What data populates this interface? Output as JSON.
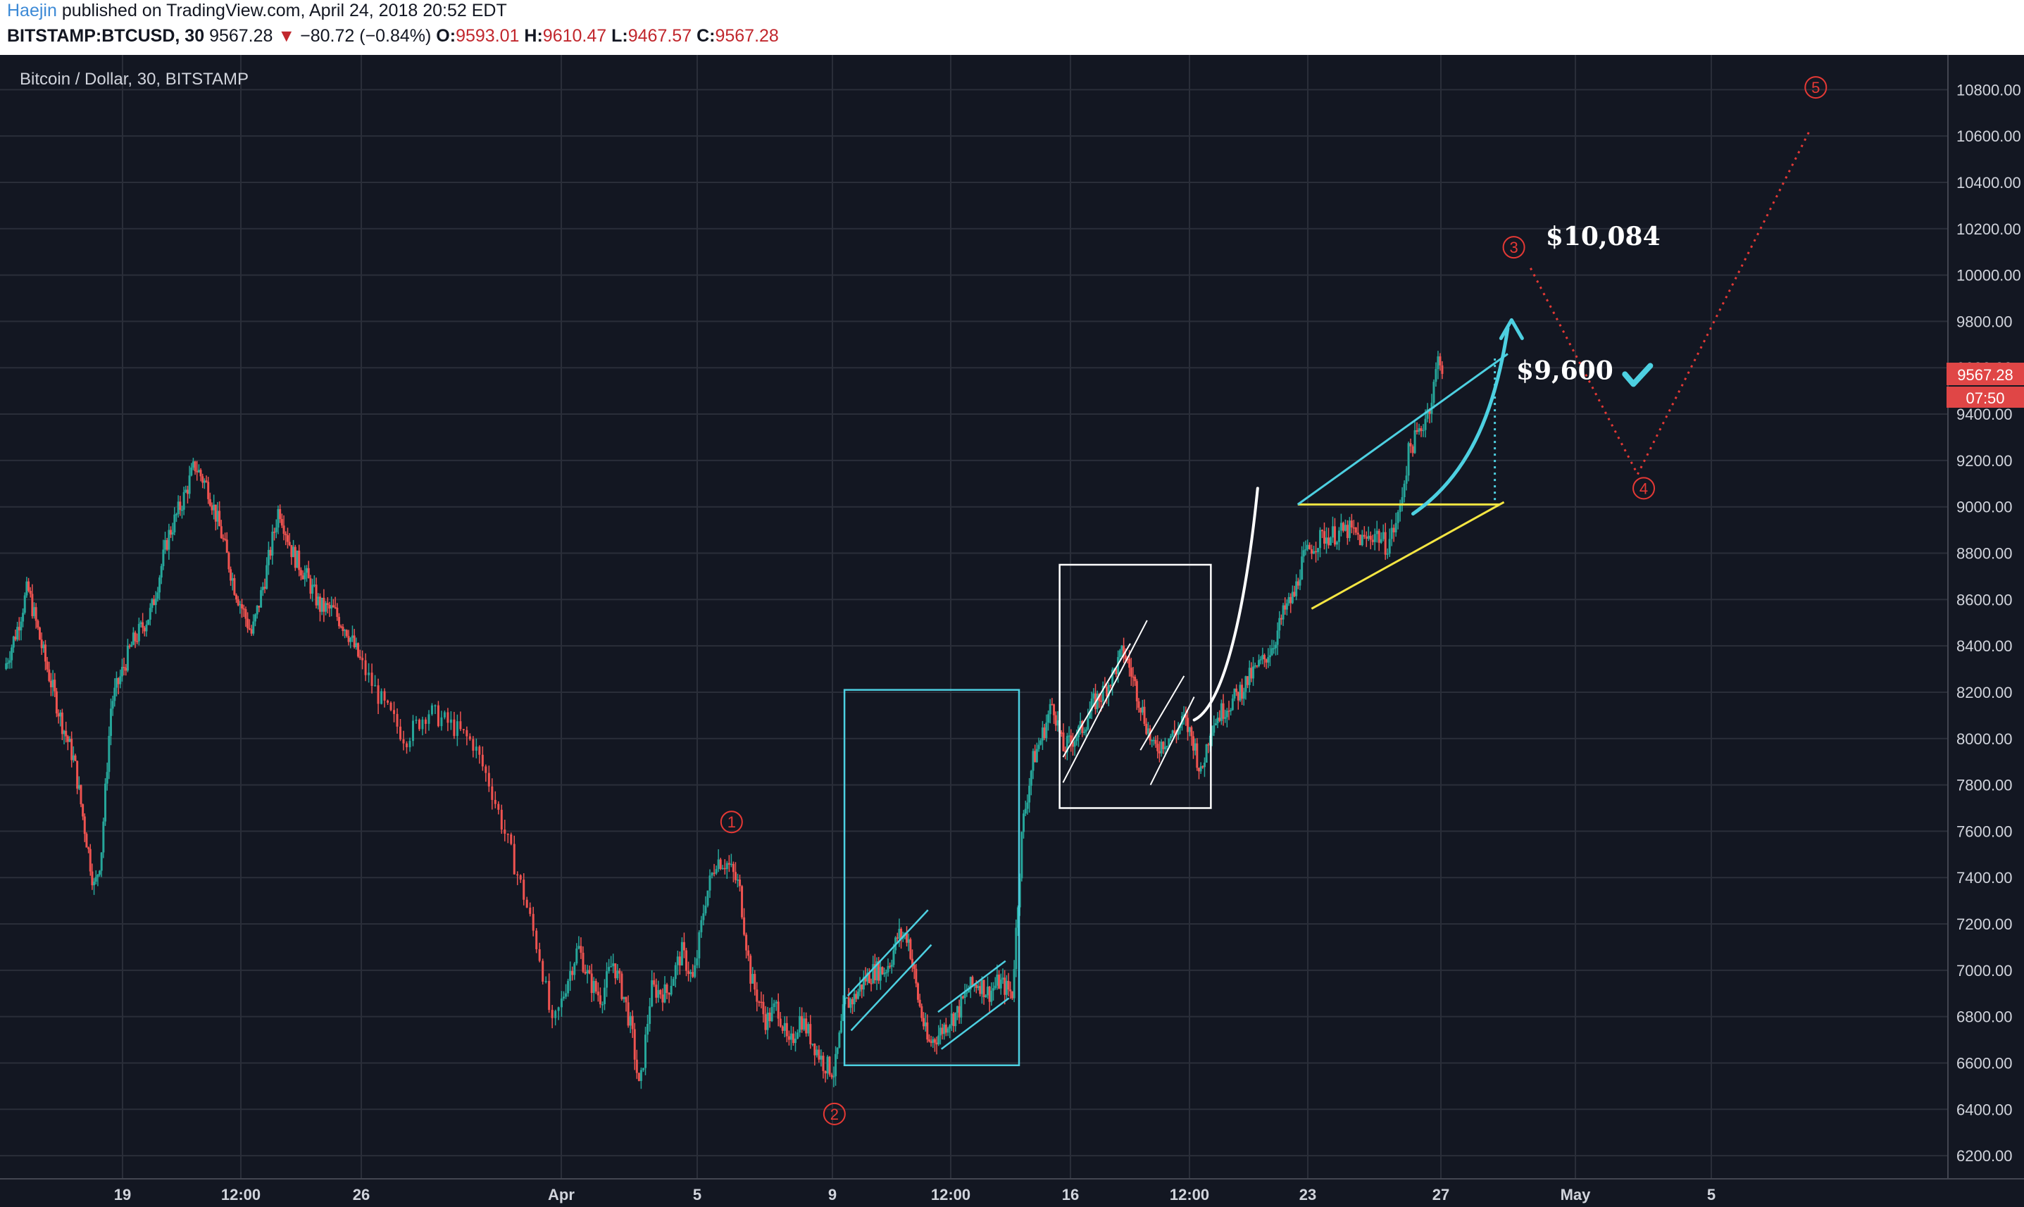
{
  "header": {
    "author": "Haejin",
    "published_text": "published on TradingView.com, April 24, 2018 20:52 EDT",
    "symbol": "BITSTAMP:BTCUSD, 30",
    "last": "9567.28",
    "change": "▼",
    "change_value": "−80.72 (−0.84%)",
    "o_label": "O:",
    "o_value": "9593.01",
    "h_label": "H:",
    "h_value": "9610.47",
    "l_label": "L:",
    "l_value": "9467.57",
    "c_label": "C:",
    "c_value": "9567.28"
  },
  "colors": {
    "background": "#131722",
    "grid": "#2a2e39",
    "up": "#26a69a",
    "down": "#ef5350",
    "cyan": "#4dd0e1",
    "yellow": "#f5e642",
    "wave": "#e53935",
    "price_tag": "#e04646"
  },
  "chart_data": {
    "type": "candlestick",
    "title": "Bitcoin / Dollar, 30, BITSTAMP",
    "x_ticks": [
      "19",
      "12:00",
      "26",
      "Apr",
      "5",
      "9",
      "12:00",
      "16",
      "12:00",
      "23",
      "27",
      "May",
      "5"
    ],
    "ylim": [
      6100,
      10950
    ],
    "y_ticks": [
      6200,
      6400,
      6600,
      6800,
      7000,
      7200,
      7400,
      7600,
      7800,
      8000,
      8200,
      8400,
      8600,
      8800,
      9000,
      9200,
      9400,
      9600,
      9800,
      10000,
      10200,
      10400,
      10600,
      10800
    ],
    "y_tick_labels": [
      "6200.00",
      "6400.00",
      "6600.00",
      "6800.00",
      "7000.00",
      "7200.00",
      "7400.00",
      "7600.00",
      "7800.00",
      "8000.00",
      "8200.00",
      "8400.00",
      "8600.00",
      "8800.00",
      "9000.00",
      "9200.00",
      "9400.00",
      "9600.00",
      "9800.00",
      "10000.00",
      "10200.00",
      "10400.00",
      "10600.00",
      "10800.00"
    ],
    "price_path": [
      [
        0,
        8300
      ],
      [
        0.2,
        8480
      ],
      [
        0.35,
        8650
      ],
      [
        0.6,
        8350
      ],
      [
        0.85,
        8080
      ],
      [
        1.05,
        7900
      ],
      [
        1.2,
        7620
      ],
      [
        1.35,
        7350
      ],
      [
        1.45,
        7500
      ],
      [
        1.6,
        8150
      ],
      [
        1.9,
        8400
      ],
      [
        2.2,
        8550
      ],
      [
        2.45,
        8870
      ],
      [
        2.7,
        9050
      ],
      [
        2.85,
        9180
      ],
      [
        3.05,
        9080
      ],
      [
        3.25,
        8880
      ],
      [
        3.45,
        8650
      ],
      [
        3.7,
        8450
      ],
      [
        3.9,
        8700
      ],
      [
        4.1,
        9000
      ],
      [
        4.3,
        8800
      ],
      [
        4.5,
        8700
      ],
      [
        4.7,
        8570
      ],
      [
        4.9,
        8550
      ],
      [
        5.1,
        8470
      ],
      [
        5.3,
        8330
      ],
      [
        5.5,
        8150
      ],
      [
        5.7,
        8000
      ],
      [
        5.9,
        8120
      ],
      [
        6.1,
        8060
      ],
      [
        6.3,
        7980
      ],
      [
        6.45,
        7800
      ],
      [
        6.6,
        7560
      ],
      [
        6.75,
        7320
      ],
      [
        6.9,
        7040
      ],
      [
        7.0,
        6750
      ],
      [
        7.15,
        6950
      ],
      [
        7.3,
        7100
      ],
      [
        7.45,
        6950
      ],
      [
        7.6,
        6880
      ],
      [
        7.75,
        7040
      ],
      [
        7.9,
        6880
      ],
      [
        8.0,
        6730
      ],
      [
        8.1,
        6470
      ],
      [
        8.25,
        6920
      ],
      [
        8.45,
        6900
      ],
      [
        8.65,
        7080
      ],
      [
        8.8,
        6950
      ],
      [
        8.95,
        7300
      ],
      [
        9.1,
        7480
      ],
      [
        9.25,
        7460
      ],
      [
        9.4,
        7360
      ],
      [
        9.55,
        6970
      ],
      [
        9.75,
        6780
      ],
      [
        9.9,
        6850
      ],
      [
        10.05,
        6660
      ],
      [
        10.2,
        6800
      ],
      [
        10.35,
        6700
      ],
      [
        10.5,
        6600
      ],
      [
        10.65,
        6560
      ],
      [
        10.8,
        6850
      ],
      [
        10.95,
        6880
      ],
      [
        11.1,
        6960
      ],
      [
        11.25,
        7000
      ],
      [
        11.4,
        7000
      ],
      [
        11.5,
        7050
      ],
      [
        11.6,
        7150
      ],
      [
        11.75,
        7150
      ],
      [
        11.9,
        6880
      ],
      [
        12.05,
        6680
      ],
      [
        12.2,
        6720
      ],
      [
        12.35,
        6780
      ],
      [
        12.5,
        6820
      ],
      [
        12.65,
        6920
      ],
      [
        12.8,
        6950
      ],
      [
        12.95,
        6900
      ],
      [
        13.1,
        6950
      ],
      [
        13.3,
        6900
      ],
      [
        13.45,
        7620
      ],
      [
        13.6,
        7900
      ],
      [
        13.75,
        8020
      ],
      [
        13.9,
        8160
      ],
      [
        14.05,
        7950
      ],
      [
        14.2,
        8000
      ],
      [
        14.35,
        8050
      ],
      [
        14.5,
        8150
      ],
      [
        14.65,
        8200
      ],
      [
        14.8,
        8280
      ],
      [
        14.95,
        8380
      ],
      [
        15.1,
        8250
      ],
      [
        15.25,
        8100
      ],
      [
        15.4,
        7950
      ],
      [
        15.55,
        7990
      ],
      [
        15.7,
        8020
      ],
      [
        15.85,
        8080
      ],
      [
        16.0,
        7980
      ],
      [
        16.1,
        7840
      ],
      [
        16.25,
        8060
      ],
      [
        16.45,
        8130
      ],
      [
        16.6,
        8170
      ],
      [
        16.75,
        8230
      ],
      [
        16.9,
        8290
      ],
      [
        17.05,
        8340
      ],
      [
        17.2,
        8420
      ],
      [
        17.35,
        8550
      ],
      [
        17.5,
        8620
      ],
      [
        17.6,
        8750
      ],
      [
        17.75,
        8830
      ],
      [
        17.9,
        8870
      ],
      [
        18.05,
        8880
      ],
      [
        18.25,
        8900
      ],
      [
        18.45,
        8850
      ],
      [
        18.6,
        8890
      ],
      [
        18.75,
        8830
      ],
      [
        18.9,
        8950
      ],
      [
        19.05,
        9250
      ],
      [
        19.2,
        9330
      ],
      [
        19.35,
        9470
      ],
      [
        19.45,
        9670
      ],
      [
        19.5,
        9567
      ]
    ],
    "wave_points": [
      {
        "label": "1",
        "x": 9.3,
        "y": 7640
      },
      {
        "label": "2",
        "x": 10.65,
        "y": 6380
      },
      {
        "label": "3",
        "x": 20.43,
        "y": 10120
      },
      {
        "label": "4",
        "x": 22.13,
        "y": 9080
      },
      {
        "label": "5",
        "x": 24.37,
        "y": 10810
      }
    ],
    "wave_path": [
      [
        20.65,
        10030
      ],
      [
        22.05,
        9140
      ],
      [
        24.3,
        10630
      ]
    ],
    "annotations": [
      {
        "text": "$10,084",
        "x": 21.6,
        "y": 10130
      },
      {
        "text": "$9,600",
        "x": 21.1,
        "y": 9550
      }
    ],
    "current_price": {
      "value": 9567.28,
      "label": "9567.28",
      "countdown": "07:50"
    }
  }
}
